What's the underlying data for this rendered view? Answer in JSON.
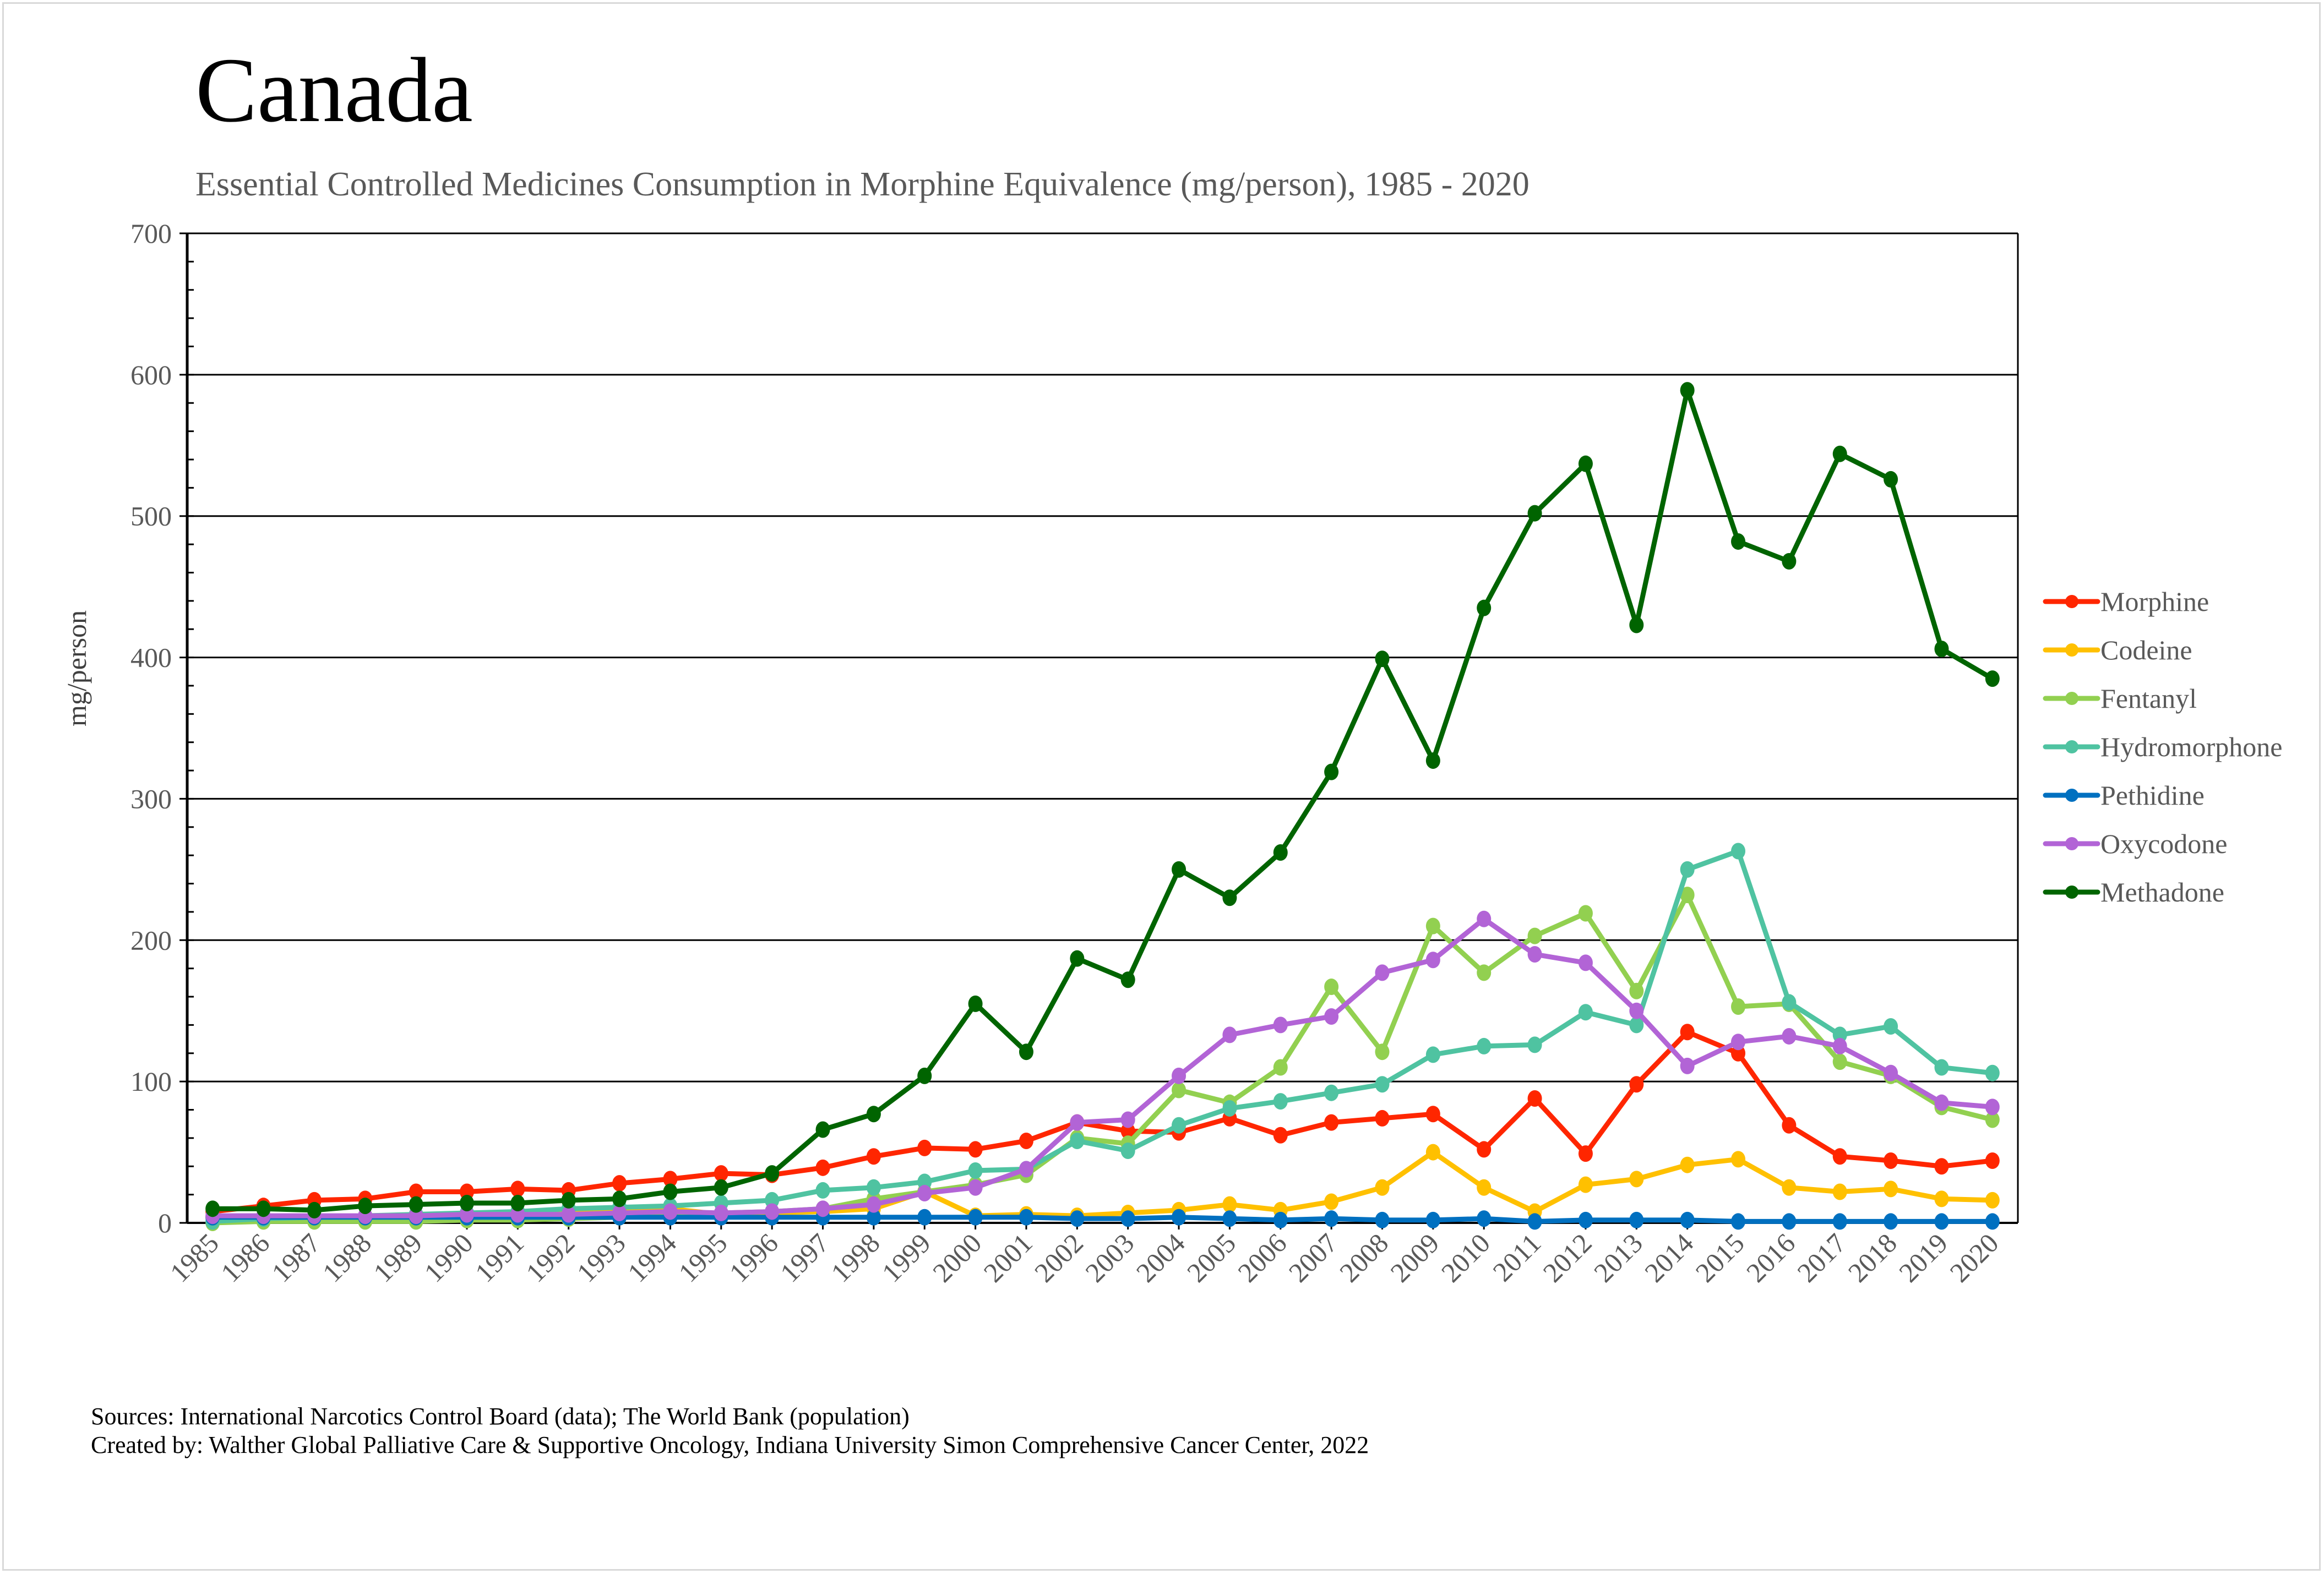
{
  "chart_data": {
    "type": "line",
    "title": "Canada",
    "subtitle": "Essential Controlled Medicines Consumption in Morphine Equivalence (mg/person), 1985 - 2020",
    "xlabel": "",
    "ylabel": "mg/person",
    "ylim": [
      0,
      700
    ],
    "yticks": [
      "0",
      "100",
      "200",
      "300",
      "400",
      "500",
      "600",
      "700"
    ],
    "grid": true,
    "legend_position": "right",
    "x": [
      "1985",
      "1986",
      "1987",
      "1988",
      "1989",
      "1990",
      "1991",
      "1992",
      "1993",
      "1994",
      "1995",
      "1996",
      "1997",
      "1998",
      "1999",
      "2000",
      "2001",
      "2002",
      "2003",
      "2004",
      "2005",
      "2006",
      "2007",
      "2008",
      "2009",
      "2010",
      "2011",
      "2012",
      "2013",
      "2014",
      "2015",
      "2016",
      "2017",
      "2018",
      "2019",
      "2020"
    ],
    "series": [
      {
        "name": "Morphine",
        "color": "#ff2600",
        "values": [
          8,
          12,
          16,
          17,
          22,
          22,
          24,
          23,
          28,
          31,
          35,
          34,
          39,
          47,
          53,
          52,
          58,
          71,
          65,
          64,
          74,
          62,
          71,
          74,
          77,
          52,
          88,
          49,
          98,
          135,
          120,
          69,
          47,
          44,
          40,
          44
        ]
      },
      {
        "name": "Codeine",
        "color": "#ffc000",
        "values": [
          4,
          4,
          4,
          4,
          5,
          5,
          6,
          7,
          8,
          10,
          6,
          7,
          8,
          10,
          22,
          5,
          6,
          5,
          7,
          9,
          13,
          9,
          15,
          25,
          50,
          25,
          8,
          27,
          31,
          41,
          45,
          25,
          22,
          24,
          17,
          16
        ]
      },
      {
        "name": "Fentanyl",
        "color": "#92d050",
        "values": [
          0,
          1,
          1,
          1,
          1,
          2,
          2,
          3,
          4,
          6,
          7,
          8,
          10,
          17,
          22,
          27,
          34,
          60,
          56,
          94,
          85,
          110,
          167,
          121,
          210,
          177,
          203,
          219,
          164,
          232,
          153,
          155,
          114,
          104,
          82,
          73
        ]
      },
      {
        "name": "Hydromorphone",
        "color": "#4fc3a1",
        "values": [
          1,
          3,
          4,
          5,
          6,
          7,
          8,
          10,
          11,
          12,
          14,
          16,
          23,
          25,
          29,
          37,
          38,
          58,
          51,
          69,
          81,
          86,
          92,
          98,
          119,
          125,
          126,
          149,
          140,
          250,
          263,
          156,
          133,
          139,
          110,
          106
        ]
      },
      {
        "name": "Pethidine",
        "color": "#0070c0",
        "values": [
          4,
          4,
          4,
          4,
          4,
          4,
          4,
          4,
          4,
          4,
          4,
          4,
          4,
          4,
          4,
          4,
          4,
          3,
          3,
          4,
          3,
          2,
          3,
          2,
          2,
          3,
          1,
          2,
          2,
          2,
          1,
          1,
          1,
          1,
          1,
          1
        ]
      },
      {
        "name": "Oxycodone",
        "color": "#b264d6",
        "values": [
          5,
          5,
          5,
          5,
          5,
          6,
          6,
          6,
          7,
          8,
          7,
          8,
          10,
          13,
          21,
          25,
          38,
          71,
          73,
          104,
          133,
          140,
          146,
          177,
          186,
          215,
          190,
          184,
          150,
          111,
          128,
          132,
          125,
          106,
          85,
          82
        ]
      },
      {
        "name": "Methadone",
        "color": "#006400",
        "values": [
          10,
          10,
          9,
          12,
          13,
          14,
          14,
          16,
          17,
          22,
          25,
          35,
          66,
          77,
          104,
          155,
          121,
          187,
          172,
          250,
          230,
          262,
          319,
          399,
          327,
          435,
          502,
          537,
          423,
          589,
          482,
          468,
          544,
          526,
          406,
          385
        ]
      }
    ]
  },
  "footer": {
    "sources": "Sources: International Narcotics Control Board (data); The World Bank (population)",
    "created_by": "Created by: Walther Global Palliative Care & Supportive Oncology, Indiana University Simon Comprehensive Cancer Center, 2022"
  }
}
